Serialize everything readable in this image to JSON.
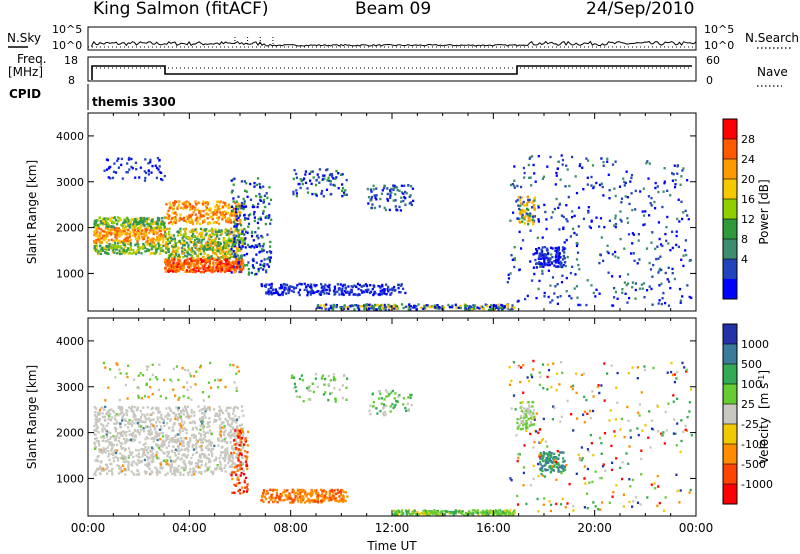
{
  "header": {
    "station": "King Salmon (fitACF)",
    "beam": "Beam 09",
    "date": "24/Sep/2010"
  },
  "top_panel": {
    "left_label": "N.Sky",
    "right_label": "N.Search",
    "left_ticks": [
      "10^5",
      "10^0"
    ],
    "right_ticks": [
      "10^5",
      "10^0"
    ]
  },
  "freq_panel": {
    "left_label_1": "Freq.",
    "left_label_2": "[MHz]",
    "right_label": "Nave",
    "left_ticks": [
      "18",
      "8"
    ],
    "right_ticks": [
      "60",
      "0"
    ]
  },
  "cpid_panel": {
    "label": "CPID",
    "program": "themis 3300"
  },
  "power_colorbar": {
    "label": "Power [dB]",
    "ticks": [
      "28",
      "24",
      "20",
      "16",
      "12",
      "8",
      "4"
    ],
    "colors": [
      "#ff0000",
      "#ff5a00",
      "#ff9900",
      "#f5c800",
      "#8fcf00",
      "#2e9a3a",
      "#3c8d70",
      "#2244bb",
      "#0000ff"
    ]
  },
  "velocity_colorbar": {
    "label_main": "Velocity",
    "label_unit": "[m s",
    "label_sup": "-1",
    "label_close": "]",
    "ticks": [
      "1000",
      "500",
      "100",
      "25",
      "-25",
      "-100",
      "-500",
      "-1000"
    ],
    "colors": [
      "#2233aa",
      "#3a7a9a",
      "#33aa55",
      "#66cc33",
      "#c8c8c0",
      "#f2c800",
      "#ff8c00",
      "#ff4400",
      "#ff0000"
    ]
  },
  "chart_data": [
    {
      "type": "heatmap",
      "title": "Power",
      "ylabel": "Slant Range [km]",
      "xlabel": "",
      "x_ticks": [
        "00:00",
        "04:00",
        "08:00",
        "12:00",
        "16:00",
        "20:00",
        "00:00"
      ],
      "y_ticks": [
        "1000",
        "2000",
        "3000",
        "4000"
      ],
      "xlim": [
        0,
        24
      ],
      "ylim": [
        180,
        4500
      ],
      "regions": [
        {
          "t0": 0.2,
          "t1": 3.0,
          "r0": 1450,
          "r1": 2250,
          "value": "high"
        },
        {
          "t0": 3.0,
          "t1": 6.1,
          "r0": 1050,
          "r1": 2600,
          "value": "high"
        },
        {
          "t0": 5.5,
          "t1": 7.2,
          "r0": 1000,
          "r1": 3100,
          "value": "low"
        },
        {
          "t0": 6.8,
          "t1": 12.5,
          "r0": 550,
          "r1": 800,
          "value": "low"
        },
        {
          "t0": 9.0,
          "t1": 16.8,
          "r0": 180,
          "r1": 350,
          "value": "low"
        },
        {
          "t0": 16.9,
          "t1": 17.6,
          "r0": 2100,
          "r1": 2700,
          "value": "mid"
        },
        {
          "t0": 17.6,
          "t1": 18.8,
          "r0": 1150,
          "r1": 1600,
          "value": "low"
        }
      ]
    },
    {
      "type": "heatmap",
      "title": "Velocity",
      "ylabel": "Slant Range [km]",
      "xlabel": "Time UT",
      "x_ticks": [
        "00:00",
        "04:00",
        "08:00",
        "12:00",
        "16:00",
        "20:00",
        "00:00"
      ],
      "y_ticks": [
        "1000",
        "2000",
        "3000",
        "4000"
      ],
      "xlim": [
        0,
        24
      ],
      "ylim": [
        180,
        4500
      ],
      "regions": [
        {
          "t0": 0.2,
          "t1": 6.1,
          "r0": 1100,
          "r1": 2600,
          "value": "near-zero"
        },
        {
          "t0": 5.6,
          "t1": 6.3,
          "r0": 700,
          "r1": 2100,
          "value": "-500"
        },
        {
          "t0": 6.8,
          "t1": 10.2,
          "r0": 500,
          "r1": 780,
          "value": "-100"
        },
        {
          "t0": 12.0,
          "t1": 16.8,
          "r0": 180,
          "r1": 330,
          "value": "100"
        },
        {
          "t0": 17.8,
          "t1": 18.8,
          "r0": 1150,
          "r1": 1600,
          "value": "500"
        }
      ]
    }
  ]
}
